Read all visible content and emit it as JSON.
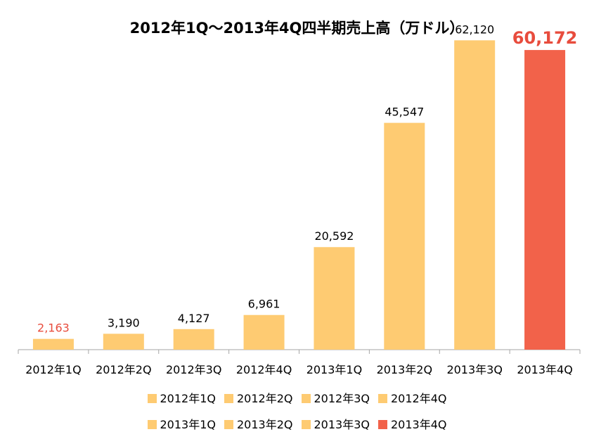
{
  "chart_data": {
    "type": "bar",
    "title": "2012年1Q～2013年4Q四半期売上高（万ドル）",
    "categories": [
      "2012年1Q",
      "2012年2Q",
      "2012年3Q",
      "2012年4Q",
      "2013年1Q",
      "2013年2Q",
      "2013年3Q",
      "2013年4Q"
    ],
    "values": [
      2163,
      3190,
      4127,
      6961,
      20592,
      45547,
      62120,
      60172
    ],
    "value_labels": [
      "2,163",
      "3,190",
      "4,127",
      "6,961",
      "20,592",
      "45,547",
      "62,120",
      "60,172"
    ],
    "bar_colors": [
      "#FECB72",
      "#FECB72",
      "#FECB72",
      "#FECB72",
      "#FECB72",
      "#FECB72",
      "#FECB72",
      "#F2624A"
    ],
    "label_colors": [
      "#E84C3D",
      "#000000",
      "#000000",
      "#000000",
      "#000000",
      "#000000",
      "#000000",
      "#E84C3D"
    ],
    "highlight_label_index": 7,
    "ylim": [
      0,
      64000
    ],
    "grid": false,
    "legend_position": "bottom",
    "legend_rows": [
      [
        0,
        1,
        2,
        3
      ],
      [
        4,
        5,
        6,
        7
      ]
    ]
  }
}
